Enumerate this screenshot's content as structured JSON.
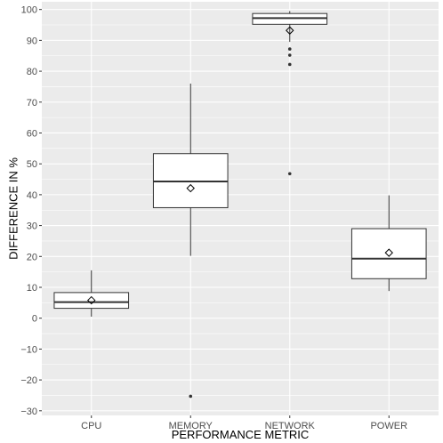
{
  "chart_data": {
    "type": "boxplot",
    "title": "",
    "xlabel": "PERFORMANCE METRIC",
    "ylabel": "DIFFERENCE IN %",
    "ylim": [
      -31.5,
      102.5
    ],
    "y_ticks": [
      -30,
      -20,
      -10,
      0,
      10,
      20,
      30,
      40,
      50,
      60,
      70,
      80,
      90,
      100
    ],
    "grid": true,
    "legend": "none",
    "categories": [
      "CPU",
      "MEMORY",
      "NETWORK",
      "POWER"
    ],
    "boxes": [
      {
        "category": "CPU",
        "whisker_low": 0.5,
        "q1": 3.2,
        "median": 5.2,
        "q3": 8.3,
        "whisker_high": 15.5,
        "mean": 5.8,
        "outliers": []
      },
      {
        "category": "MEMORY",
        "whisker_low": 20.2,
        "q1": 35.8,
        "median": 44.3,
        "q3": 53.3,
        "whisker_high": 76.0,
        "mean": 42.1,
        "outliers": [
          -25.3
        ]
      },
      {
        "category": "NETWORK",
        "whisker_low": 89.5,
        "q1": 95.2,
        "median": 97.2,
        "q3": 98.7,
        "whisker_high": 99.5,
        "mean": 93.2,
        "outliers": [
          87.2,
          85.2,
          82.2,
          46.8
        ]
      },
      {
        "category": "POWER",
        "whisker_low": 8.8,
        "q1": 12.8,
        "median": 19.3,
        "q3": 29.0,
        "whisker_high": 39.8,
        "mean": 21.2,
        "outliers": []
      }
    ],
    "colors": {
      "panel": "#ebebeb",
      "grid": "#ffffff",
      "box_fill": "#ffffff",
      "box_stroke": "#333333",
      "tick_text": "#4d4d4d",
      "title_text": "#000000"
    }
  }
}
